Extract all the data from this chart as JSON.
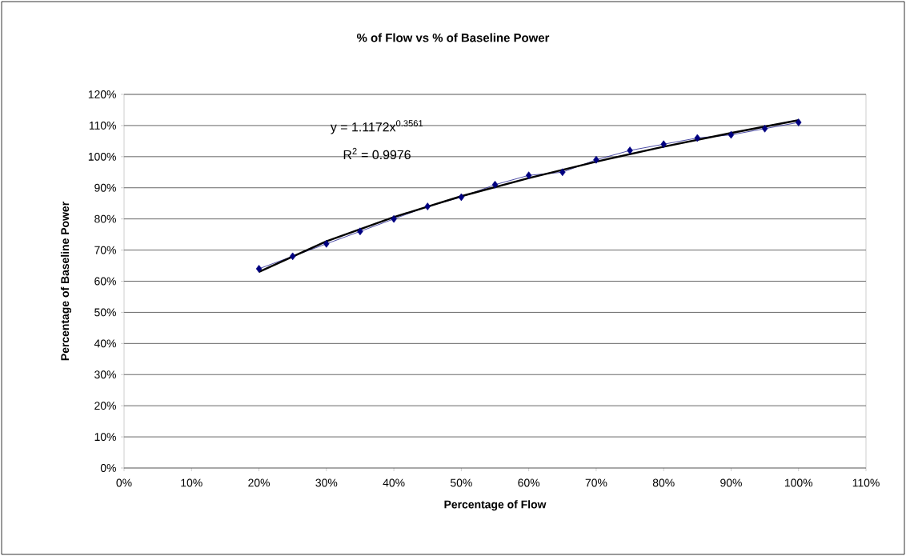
{
  "chart_data": {
    "type": "line",
    "title": "% of Flow vs % of Baseline Power",
    "xlabel": "Percentage of Flow",
    "ylabel": "Percentage of Baseline Power",
    "annotations": [
      "y = 1.1172x$^{0.3561}$",
      "R$^{2}$ = 0.9976"
    ],
    "series": [
      {
        "color": "#000080",
        "marker": "diamond",
        "x": [
          20,
          25,
          30,
          35,
          40,
          45,
          50,
          55,
          60,
          65,
          70,
          75,
          80,
          85,
          90,
          95,
          100
        ],
        "values": [
          64,
          68,
          72,
          76,
          80,
          84,
          87,
          91,
          94,
          95,
          99,
          102,
          104,
          106,
          107,
          109,
          111
        ]
      },
      {
        "color": "#000000",
        "marker": "none",
        "x": [
          20,
          30,
          40,
          50,
          60,
          70,
          80,
          90,
          100
        ],
        "values": [
          63.0,
          72.8,
          80.6,
          87.3,
          93.1,
          98.4,
          103.2,
          107.6,
          111.7
        ]
      }
    ],
    "xlim": [
      0,
      110
    ],
    "ylim": [
      0,
      120
    ],
    "xticks": [
      {
        "value": 0,
        "label": "0%"
      },
      {
        "value": 10,
        "label": "10%"
      },
      {
        "value": 20,
        "label": "20%"
      },
      {
        "value": 30,
        "label": "30%"
      },
      {
        "value": 40,
        "label": "40%"
      },
      {
        "value": 50,
        "label": "50%"
      },
      {
        "value": 60,
        "label": "60%"
      },
      {
        "value": 70,
        "label": "70%"
      },
      {
        "value": 80,
        "label": "80%"
      },
      {
        "value": 90,
        "label": "90%"
      },
      {
        "value": 100,
        "label": "100%"
      },
      {
        "value": 110,
        "label": "110%"
      }
    ],
    "yticks": [
      {
        "value": 0,
        "label": "0%"
      },
      {
        "value": 10,
        "label": "10%"
      },
      {
        "value": 20,
        "label": "20%"
      },
      {
        "value": 30,
        "label": "30%"
      },
      {
        "value": 40,
        "label": "40%"
      },
      {
        "value": 50,
        "label": "50%"
      },
      {
        "value": 60,
        "label": "60%"
      },
      {
        "value": 70,
        "label": "70%"
      },
      {
        "value": 80,
        "label": "80%"
      },
      {
        "value": 90,
        "label": "90%"
      },
      {
        "value": 100,
        "label": "100%"
      },
      {
        "value": 110,
        "label": "110%"
      },
      {
        "value": 120,
        "label": "120%"
      }
    ],
    "grid": "y"
  }
}
